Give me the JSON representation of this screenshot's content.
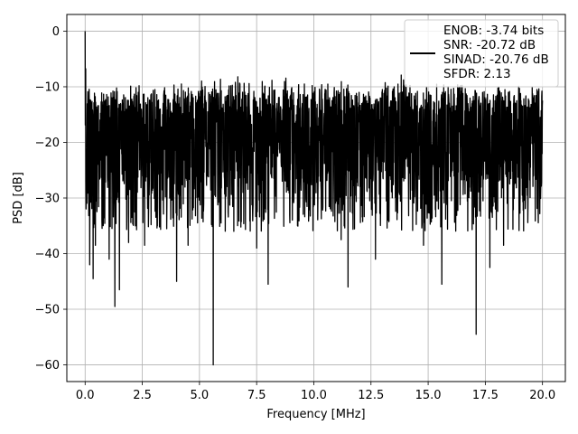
{
  "chart_data": {
    "type": "line",
    "title": "",
    "xlabel": "Frequency [MHz]",
    "ylabel": "PSD [dB]",
    "xlim": [
      -0.8,
      21.0
    ],
    "ylim": [
      -63.0,
      3.0
    ],
    "grid": true,
    "legend": "top-right",
    "x_ticks": [
      0.0,
      2.5,
      5.0,
      7.5,
      10.0,
      12.5,
      15.0,
      17.5,
      20.0
    ],
    "x_tick_labels": [
      "0.0",
      "2.5",
      "5.0",
      "7.5",
      "10.0",
      "12.5",
      "15.0",
      "17.5",
      "20.0"
    ],
    "y_ticks": [
      0,
      -10,
      -20,
      -30,
      -40,
      -50,
      -60
    ],
    "y_tick_labels": [
      "0",
      "−10",
      "−20",
      "−30",
      "−40",
      "−50",
      "−60"
    ],
    "legend_lines": [
      "ENOB: -3.74 bits",
      "SNR: -20.72 dB",
      "SINAD: -20.76 dB",
      "SFDR: 2.13"
    ],
    "series": [
      {
        "color": "#000000",
        "x_start": 0.0,
        "x_end": 20.0,
        "noise_floor_db": -20,
        "peaks_max_db": [
          0,
          -9,
          -8,
          -8,
          -8,
          -8,
          -7,
          -7,
          -7,
          -7,
          -8,
          -8,
          -9,
          -7,
          -8,
          -8,
          -9,
          -9,
          -9,
          -9,
          -9
        ],
        "dips": [
          {
            "x": 0.2,
            "y": -42
          },
          {
            "x": 0.35,
            "y": -44.5
          },
          {
            "x": 0.45,
            "y": -38.5
          },
          {
            "x": 1.05,
            "y": -41
          },
          {
            "x": 1.3,
            "y": -49.5
          },
          {
            "x": 1.5,
            "y": -46.5
          },
          {
            "x": 1.9,
            "y": -38
          },
          {
            "x": 2.6,
            "y": -38.5
          },
          {
            "x": 4.0,
            "y": -45
          },
          {
            "x": 4.5,
            "y": -38.5
          },
          {
            "x": 5.6,
            "y": -60.0
          },
          {
            "x": 6.5,
            "y": -36
          },
          {
            "x": 7.5,
            "y": -39
          },
          {
            "x": 8.0,
            "y": -45.5
          },
          {
            "x": 11.2,
            "y": -37.5
          },
          {
            "x": 11.5,
            "y": -46
          },
          {
            "x": 12.7,
            "y": -41
          },
          {
            "x": 14.8,
            "y": -38.5
          },
          {
            "x": 15.6,
            "y": -45.5
          },
          {
            "x": 17.1,
            "y": -54.5
          },
          {
            "x": 17.7,
            "y": -42.5
          },
          {
            "x": 18.3,
            "y": -38.5
          }
        ]
      }
    ]
  }
}
